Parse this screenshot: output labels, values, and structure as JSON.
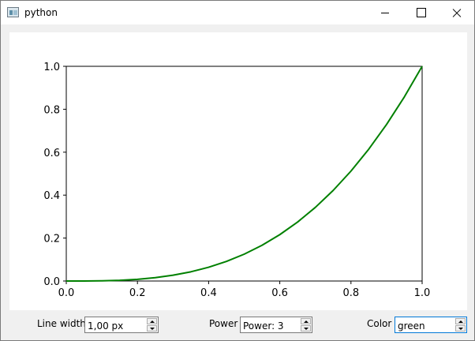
{
  "window": {
    "title": "python",
    "icon": "python-app-icon"
  },
  "controls": {
    "line_width": {
      "label": "Line width",
      "value": "1,00 px"
    },
    "power": {
      "label": "Power",
      "value": "Power: 3"
    },
    "color": {
      "label": "Color",
      "value": "green"
    }
  },
  "chart_data": {
    "type": "line",
    "title": "",
    "xlabel": "",
    "ylabel": "",
    "xlim": [
      0.0,
      1.0
    ],
    "ylim": [
      0.0,
      1.0
    ],
    "x_ticks": [
      "0.0",
      "0.2",
      "0.4",
      "0.6",
      "0.8",
      "1.0"
    ],
    "y_ticks": [
      "0.0",
      "0.2",
      "0.4",
      "0.6",
      "0.8",
      "1.0"
    ],
    "grid": false,
    "series": [
      {
        "color": "#008000",
        "x": [
          0.0,
          0.05,
          0.1,
          0.15,
          0.2,
          0.25,
          0.3,
          0.35,
          0.4,
          0.45,
          0.5,
          0.55,
          0.6,
          0.65,
          0.7,
          0.75,
          0.8,
          0.85,
          0.9,
          0.95,
          1.0
        ],
        "y": [
          0.0,
          0.000125,
          0.001,
          0.003375,
          0.008,
          0.015625,
          0.027,
          0.042875,
          0.064,
          0.091125,
          0.125,
          0.166375,
          0.216,
          0.274625,
          0.343,
          0.421875,
          0.512,
          0.614125,
          0.729,
          0.857375,
          1.0
        ]
      }
    ]
  }
}
